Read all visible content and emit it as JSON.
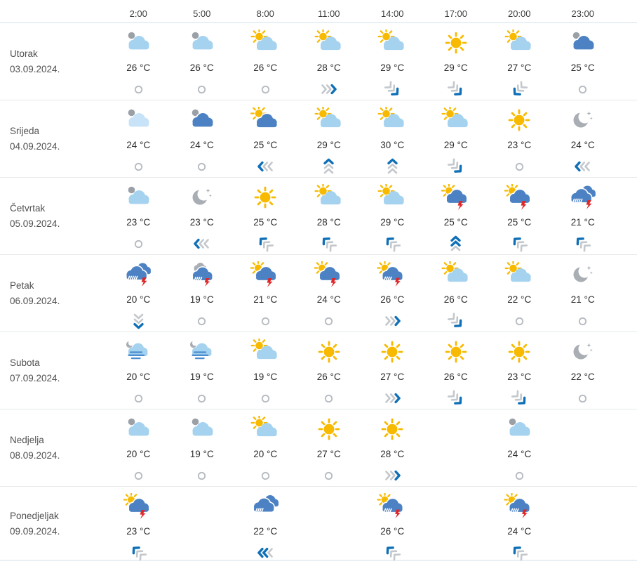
{
  "header": {
    "times": [
      "2:00",
      "5:00",
      "8:00",
      "11:00",
      "14:00",
      "17:00",
      "20:00",
      "23:00"
    ]
  },
  "colors": {
    "sun": "#f7ba00",
    "cloud_light": "#a5d2ef",
    "cloud_pale": "#c8e3f7",
    "cloud_dark": "#4c82c3",
    "moon_dot": "#9aa0a6",
    "moon": "#a9aeb4",
    "bolt": "#e02728",
    "rain": "#ffffff",
    "fog_line": "#4a8ecf",
    "wind_blue": "#0f6fb7",
    "wind_gray": "#c4c8cc",
    "calm": "#b5bac0"
  },
  "days": [
    {
      "name": "Utorak",
      "date": "03.09.2024.",
      "cells": [
        {
          "icon": "moon-cloud",
          "temp": "26 °C",
          "wind": {
            "dir": "calm",
            "level": 0
          }
        },
        {
          "icon": "moon-cloud",
          "temp": "26 °C",
          "wind": {
            "dir": "calm",
            "level": 0
          }
        },
        {
          "icon": "sun-cloud",
          "temp": "26 °C",
          "wind": {
            "dir": "calm",
            "level": 0
          }
        },
        {
          "icon": "sun-cloud",
          "temp": "28 °C",
          "wind": {
            "dir": "right",
            "level": 1
          }
        },
        {
          "icon": "sun-cloud",
          "temp": "29 °C",
          "wind": {
            "dir": "down-right",
            "level": 1
          }
        },
        {
          "icon": "sun",
          "temp": "29 °C",
          "wind": {
            "dir": "down-right",
            "level": 1
          }
        },
        {
          "icon": "sun-cloud",
          "temp": "27 °C",
          "wind": {
            "dir": "down-left",
            "level": 1
          }
        },
        {
          "icon": "moon-cloud-dark",
          "temp": "25 °C",
          "wind": {
            "dir": "calm",
            "level": 0
          }
        }
      ]
    },
    {
      "name": "Srijeda",
      "date": "04.09.2024.",
      "cells": [
        {
          "icon": "moon-cloud-pale",
          "temp": "24 °C",
          "wind": {
            "dir": "calm",
            "level": 0
          }
        },
        {
          "icon": "moon-cloud-dark",
          "temp": "24 °C",
          "wind": {
            "dir": "calm",
            "level": 0
          }
        },
        {
          "icon": "sun-cloud-dark",
          "temp": "25 °C",
          "wind": {
            "dir": "left",
            "level": 1
          }
        },
        {
          "icon": "sun-cloud",
          "temp": "29 °C",
          "wind": {
            "dir": "up",
            "level": 1
          }
        },
        {
          "icon": "sun-cloud",
          "temp": "30 °C",
          "wind": {
            "dir": "up",
            "level": 1
          }
        },
        {
          "icon": "sun-cloud",
          "temp": "29 °C",
          "wind": {
            "dir": "down-right",
            "level": 1
          }
        },
        {
          "icon": "sun",
          "temp": "23 °C",
          "wind": {
            "dir": "calm",
            "level": 0
          }
        },
        {
          "icon": "moon-stars",
          "temp": "24 °C",
          "wind": {
            "dir": "left",
            "level": 1
          }
        }
      ]
    },
    {
      "name": "Četvrtak",
      "date": "05.09.2024.",
      "cells": [
        {
          "icon": "moon-cloud",
          "temp": "23 °C",
          "wind": {
            "dir": "calm",
            "level": 0
          }
        },
        {
          "icon": "moon-stars",
          "temp": "23 °C",
          "wind": {
            "dir": "left",
            "level": 1
          }
        },
        {
          "icon": "sun",
          "temp": "25 °C",
          "wind": {
            "dir": "up-left",
            "level": 1
          }
        },
        {
          "icon": "sun-cloud",
          "temp": "28 °C",
          "wind": {
            "dir": "up-left",
            "level": 1
          }
        },
        {
          "icon": "sun-cloud",
          "temp": "29 °C",
          "wind": {
            "dir": "up-left",
            "level": 1
          }
        },
        {
          "icon": "sun-cloud-thunder",
          "temp": "25 °C",
          "wind": {
            "dir": "up",
            "level": 2
          }
        },
        {
          "icon": "sun-cloud-thunder",
          "temp": "25 °C",
          "wind": {
            "dir": "up-left",
            "level": 1
          }
        },
        {
          "icon": "cloud-rain-thunder",
          "temp": "21 °C",
          "wind": {
            "dir": "up-left",
            "level": 1
          }
        }
      ]
    },
    {
      "name": "Petak",
      "date": "06.09.2024.",
      "cells": [
        {
          "icon": "cloud-rain-thunder",
          "temp": "20 °C",
          "wind": {
            "dir": "down",
            "level": 1
          }
        },
        {
          "icon": "moon-cloud-rain-thunder",
          "temp": "19 °C",
          "wind": {
            "dir": "calm",
            "level": 0
          }
        },
        {
          "icon": "sun-cloud-thunder",
          "temp": "21 °C",
          "wind": {
            "dir": "calm",
            "level": 0
          }
        },
        {
          "icon": "sun-cloud-thunder",
          "temp": "24 °C",
          "wind": {
            "dir": "calm",
            "level": 0
          }
        },
        {
          "icon": "sun-cloud-rain-thunder",
          "temp": "26 °C",
          "wind": {
            "dir": "right",
            "level": 1
          }
        },
        {
          "icon": "sun-cloud",
          "temp": "26 °C",
          "wind": {
            "dir": "down-right",
            "level": 1
          }
        },
        {
          "icon": "sun-cloud",
          "temp": "22 °C",
          "wind": {
            "dir": "calm",
            "level": 0
          }
        },
        {
          "icon": "moon-stars",
          "temp": "21 °C",
          "wind": {
            "dir": "calm",
            "level": 0
          }
        }
      ]
    },
    {
      "name": "Subota",
      "date": "07.09.2024.",
      "cells": [
        {
          "icon": "fog-night",
          "temp": "20 °C",
          "wind": {
            "dir": "calm",
            "level": 0
          }
        },
        {
          "icon": "fog-night",
          "temp": "19 °C",
          "wind": {
            "dir": "calm",
            "level": 0
          }
        },
        {
          "icon": "sun-cloud",
          "temp": "19 °C",
          "wind": {
            "dir": "calm",
            "level": 0
          }
        },
        {
          "icon": "sun",
          "temp": "26 °C",
          "wind": {
            "dir": "calm",
            "level": 0
          }
        },
        {
          "icon": "sun",
          "temp": "27 °C",
          "wind": {
            "dir": "right",
            "level": 1
          }
        },
        {
          "icon": "sun",
          "temp": "26 °C",
          "wind": {
            "dir": "down-right",
            "level": 1
          }
        },
        {
          "icon": "sun",
          "temp": "23 °C",
          "wind": {
            "dir": "down-right",
            "level": 1
          }
        },
        {
          "icon": "moon-stars",
          "temp": "22 °C",
          "wind": {
            "dir": "calm",
            "level": 0
          }
        }
      ]
    },
    {
      "name": "Nedjelja",
      "date": "08.09.2024.",
      "cells": [
        {
          "icon": "moon-cloud",
          "temp": "20 °C",
          "wind": {
            "dir": "calm",
            "level": 0
          }
        },
        {
          "icon": "moon-cloud",
          "temp": "19 °C",
          "wind": {
            "dir": "calm",
            "level": 0
          }
        },
        {
          "icon": "sun-cloud",
          "temp": "20 °C",
          "wind": {
            "dir": "calm",
            "level": 0
          }
        },
        {
          "icon": "sun",
          "temp": "27 °C",
          "wind": {
            "dir": "calm",
            "level": 0
          }
        },
        {
          "icon": "sun",
          "temp": "28 °C",
          "wind": {
            "dir": "right",
            "level": 1
          }
        },
        null,
        {
          "icon": "moon-cloud",
          "temp": "24 °C",
          "wind": {
            "dir": "calm",
            "level": 0
          }
        },
        null
      ]
    },
    {
      "name": "Ponedjeljak",
      "date": "09.09.2024.",
      "cells": [
        {
          "icon": "sun-cloud-thunder",
          "temp": "23 °C",
          "wind": {
            "dir": "up-left",
            "level": 1
          }
        },
        null,
        {
          "icon": "cloud-rain",
          "temp": "22 °C",
          "wind": {
            "dir": "left",
            "level": 2
          }
        },
        null,
        {
          "icon": "sun-cloud-rain-thunder",
          "temp": "26 °C",
          "wind": {
            "dir": "up-left",
            "level": 1
          }
        },
        null,
        {
          "icon": "sun-cloud-rain-thunder",
          "temp": "24 °C",
          "wind": {
            "dir": "up-left",
            "level": 1
          }
        },
        null
      ]
    }
  ]
}
